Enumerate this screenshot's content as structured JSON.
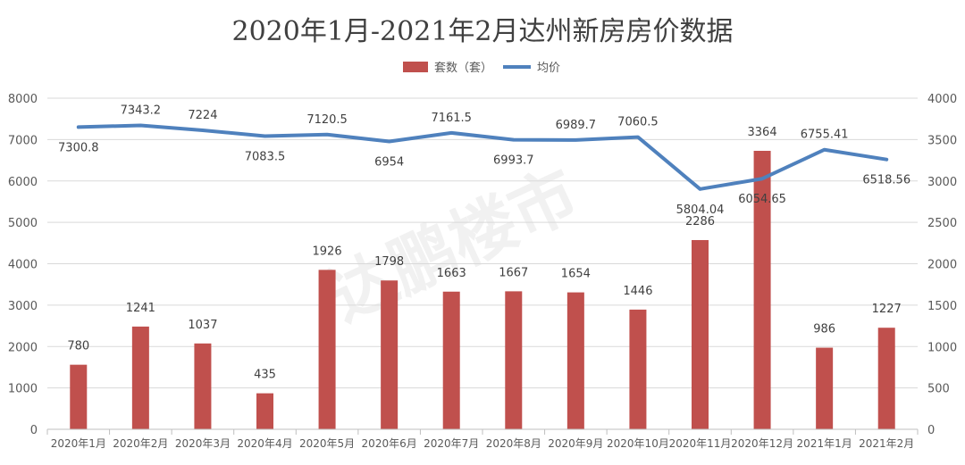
{
  "chart_data": {
    "type": "bar",
    "title": "2020年1月-2021年2月达州新房房价数据",
    "categories": [
      "2020年1月",
      "2020年2月",
      "2020年3月",
      "2020年4月",
      "2020年5月",
      "2020年6月",
      "2020年7月",
      "2020年8月",
      "2020年9月",
      "2020年10月",
      "2020年11月",
      "2020年12月",
      "2021年1月",
      "2021年2月"
    ],
    "series": [
      {
        "name": "套数（套）",
        "type": "bar",
        "axis": "right",
        "color": "#c0504d",
        "values": [
          780,
          1241,
          1037,
          435,
          1926,
          1798,
          1663,
          1667,
          1654,
          1446,
          2286,
          3364,
          986,
          1227
        ]
      },
      {
        "name": "均价",
        "type": "line",
        "axis": "left",
        "color": "#4f81bd",
        "values": [
          7300.8,
          7343.2,
          7224,
          7083.5,
          7120.5,
          6954,
          7161.5,
          6993.7,
          6989.7,
          7060.5,
          5804.04,
          6054.65,
          6755.41,
          6518.56
        ]
      }
    ],
    "y_left": {
      "min": 0,
      "max": 8000,
      "step": 1000,
      "ticks": [
        "0",
        "1000",
        "2000",
        "3000",
        "4000",
        "5000",
        "6000",
        "7000",
        "8000"
      ]
    },
    "y_right": {
      "min": 0,
      "max": 4000,
      "step": 500,
      "ticks": [
        "0",
        "500",
        "1000",
        "1500",
        "2000",
        "2500",
        "3000",
        "3500",
        "4000"
      ]
    },
    "grid": true,
    "legend_position": "top-center",
    "watermark": "达鹏楼市"
  }
}
